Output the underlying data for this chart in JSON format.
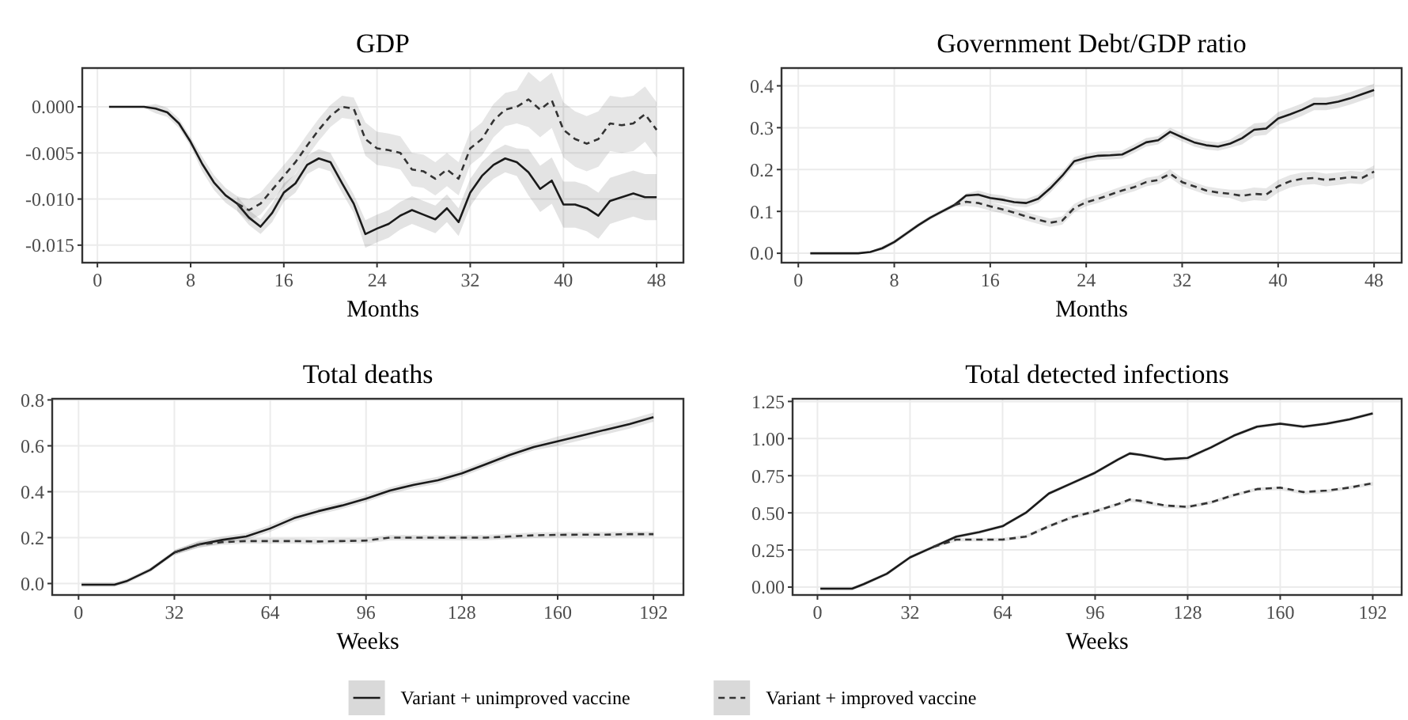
{
  "chart_data": [
    {
      "type": "line",
      "title": "GDP",
      "xlabel": "Months",
      "grid": true,
      "marker": "none",
      "legend": "bottom",
      "x": [
        1,
        2,
        3,
        4,
        5,
        6,
        7,
        8,
        9,
        10,
        11,
        12,
        13,
        14,
        15,
        16,
        17,
        18,
        19,
        20,
        21,
        22,
        23,
        24,
        25,
        26,
        27,
        28,
        29,
        30,
        31,
        32,
        33,
        34,
        35,
        36,
        37,
        38,
        39,
        40,
        41,
        42,
        43,
        44,
        45,
        46,
        47,
        48
      ],
      "xlim": [
        -1.3,
        50.3
      ],
      "xticks": [
        0,
        8,
        16,
        24,
        32,
        40,
        48
      ],
      "ylim": [
        -0.0169,
        0.0042
      ],
      "yticks": [
        {
          "value": 0,
          "label": "0.000"
        },
        {
          "value": -0.005,
          "label": "-0.005"
        },
        {
          "value": -0.01,
          "label": "-0.010"
        },
        {
          "value": -0.015,
          "label": "-0.015"
        }
      ],
      "series": [
        {
          "name": "Variant + unimproved vaccine",
          "color": "#1a1a1a",
          "line_style": "solid",
          "values": [
            0,
            0,
            0,
            0,
            -0.0002,
            -0.0006,
            -0.0018,
            -0.0038,
            -0.0062,
            -0.0082,
            -0.0096,
            -0.0105,
            -0.012,
            -0.013,
            -0.0115,
            -0.0093,
            -0.0083,
            -0.0063,
            -0.0056,
            -0.006,
            -0.0083,
            -0.0105,
            -0.0138,
            -0.0132,
            -0.0127,
            -0.0118,
            -0.0112,
            -0.0117,
            -0.0122,
            -0.011,
            -0.0125,
            -0.0093,
            -0.0075,
            -0.0063,
            -0.0056,
            -0.006,
            -0.0071,
            -0.0089,
            -0.008,
            -0.0106,
            -0.0106,
            -0.011,
            -0.0118,
            -0.0102,
            -0.0098,
            -0.0094,
            -0.0098,
            -0.0098
          ],
          "lower": [
            -0.0001,
            -0.0001,
            -0.0001,
            -0.0001,
            -0.0007,
            -0.0011,
            -0.0023,
            -0.0043,
            -0.007,
            -0.009,
            -0.0104,
            -0.0113,
            -0.0128,
            -0.0138,
            -0.0125,
            -0.0103,
            -0.0093,
            -0.0073,
            -0.0066,
            -0.007,
            -0.0093,
            -0.0115,
            -0.0153,
            -0.0147,
            -0.0142,
            -0.0133,
            -0.0127,
            -0.0132,
            -0.0137,
            -0.0125,
            -0.014,
            -0.0108,
            -0.009,
            -0.0078,
            -0.0071,
            -0.0075,
            -0.0096,
            -0.0114,
            -0.0105,
            -0.0131,
            -0.0131,
            -0.0135,
            -0.0143,
            -0.0127,
            -0.0123,
            -0.0119,
            -0.0123,
            -0.0123
          ],
          "upper": [
            0.0001,
            0.0001,
            0.0001,
            0.0001,
            0.0003,
            -0.0001,
            -0.0013,
            -0.0033,
            -0.0054,
            -0.0074,
            -0.0088,
            -0.0097,
            -0.0112,
            -0.0122,
            -0.0105,
            -0.0083,
            -0.0073,
            -0.0053,
            -0.0046,
            -0.005,
            -0.0073,
            -0.0095,
            -0.0123,
            -0.0117,
            -0.0112,
            -0.0103,
            -0.0097,
            -0.0102,
            -0.0107,
            -0.0095,
            -0.011,
            -0.0078,
            -0.006,
            -0.0048,
            -0.0041,
            -0.0045,
            -0.0046,
            -0.0064,
            -0.0055,
            -0.0081,
            -0.0081,
            -0.0085,
            -0.0093,
            -0.0077,
            -0.0073,
            -0.0069,
            -0.0073,
            -0.0073
          ]
        },
        {
          "name": "Variant + improved vaccine",
          "color": "#333333",
          "line_style": "dashed",
          "values": [
            null,
            null,
            null,
            null,
            null,
            null,
            null,
            null,
            null,
            null,
            null,
            -0.0105,
            -0.0112,
            -0.0105,
            -0.009,
            -0.0075,
            -0.006,
            -0.0042,
            -0.0025,
            -0.001,
            0,
            -0.0002,
            -0.0035,
            -0.0045,
            -0.0047,
            -0.005,
            -0.0068,
            -0.007,
            -0.0078,
            -0.0068,
            -0.0078,
            -0.0045,
            -0.0035,
            -0.0015,
            -0.0003,
            0,
            0.0008,
            -0.0003,
            0.0007,
            -0.0025,
            -0.0035,
            -0.004,
            -0.0035,
            -0.0018,
            -0.002,
            -0.0018,
            -0.0008,
            -0.0025
          ],
          "lower": [
            null,
            null,
            null,
            null,
            null,
            null,
            null,
            null,
            null,
            null,
            null,
            -0.0113,
            -0.0124,
            -0.0117,
            -0.0102,
            -0.0087,
            -0.0072,
            -0.0054,
            -0.0037,
            -0.0022,
            -0.0012,
            -0.0014,
            -0.0053,
            -0.0063,
            -0.0065,
            -0.0068,
            -0.0086,
            -0.0088,
            -0.0096,
            -0.0086,
            -0.0096,
            -0.0063,
            -0.0053,
            -0.0033,
            -0.0021,
            -0.0018,
            -0.0022,
            -0.0033,
            -0.0023,
            -0.0055,
            -0.0065,
            -0.007,
            -0.0065,
            -0.0048,
            -0.005,
            -0.0048,
            -0.0038,
            -0.0055
          ],
          "upper": [
            null,
            null,
            null,
            null,
            null,
            null,
            null,
            null,
            null,
            null,
            null,
            -0.0097,
            -0.01,
            -0.0093,
            -0.0078,
            -0.0063,
            -0.0048,
            -0.003,
            -0.0013,
            0.0002,
            0.0012,
            0.001,
            -0.0017,
            -0.0027,
            -0.0029,
            -0.0032,
            -0.005,
            -0.0052,
            -0.006,
            -0.005,
            -0.006,
            -0.0027,
            -0.0017,
            0.0003,
            0.0015,
            0.0018,
            0.0038,
            0.0027,
            0.0037,
            0.0005,
            -0.0005,
            -0.001,
            -0.0005,
            0.0012,
            0.001,
            0.0012,
            0.0022,
            0.0005
          ]
        }
      ]
    },
    {
      "type": "line",
      "title": "Government Debt/GDP ratio",
      "xlabel": "Months",
      "grid": true,
      "marker": "none",
      "x": [
        1,
        2,
        3,
        4,
        5,
        6,
        7,
        8,
        9,
        10,
        11,
        12,
        13,
        14,
        15,
        16,
        17,
        18,
        19,
        20,
        21,
        22,
        23,
        24,
        25,
        26,
        27,
        28,
        29,
        30,
        31,
        32,
        33,
        34,
        35,
        36,
        37,
        38,
        39,
        40,
        41,
        42,
        43,
        44,
        45,
        46,
        47,
        48
      ],
      "xlim": [
        -1.4,
        50.3
      ],
      "xticks": [
        0,
        8,
        16,
        24,
        32,
        40,
        48
      ],
      "ylim": [
        -0.0225,
        0.4425
      ],
      "yticks": [
        {
          "value": 0,
          "label": "0.0"
        },
        0.1,
        0.2,
        0.3,
        0.4
      ],
      "series": [
        {
          "color": "#1a1a1a",
          "line_style": "solid",
          "values": [
            0,
            0,
            0,
            0,
            0,
            0.003,
            0.012,
            0.027,
            0.047,
            0.067,
            0.085,
            0.1,
            0.115,
            0.138,
            0.14,
            0.132,
            0.128,
            0.122,
            0.12,
            0.13,
            0.155,
            0.185,
            0.22,
            0.228,
            0.233,
            0.234,
            0.236,
            0.25,
            0.265,
            0.27,
            0.29,
            0.277,
            0.265,
            0.258,
            0.255,
            0.262,
            0.275,
            0.295,
            0.298,
            0.322,
            0.332,
            0.343,
            0.357,
            0.357,
            0.362,
            0.37,
            0.38,
            0.39
          ],
          "lower": [
            -0.002,
            -0.002,
            -0.002,
            -0.002,
            -0.002,
            0.001,
            0.007,
            0.022,
            0.042,
            0.062,
            0.08,
            0.095,
            0.11,
            0.133,
            0.13,
            0.122,
            0.118,
            0.112,
            0.11,
            0.12,
            0.145,
            0.175,
            0.21,
            0.218,
            0.223,
            0.224,
            0.226,
            0.24,
            0.255,
            0.26,
            0.28,
            0.267,
            0.255,
            0.248,
            0.245,
            0.252,
            0.26,
            0.28,
            0.283,
            0.307,
            0.317,
            0.328,
            0.342,
            0.342,
            0.347,
            0.355,
            0.365,
            0.375
          ],
          "upper": [
            0.002,
            0.002,
            0.002,
            0.002,
            0.002,
            0.005,
            0.017,
            0.032,
            0.052,
            0.072,
            0.09,
            0.105,
            0.12,
            0.143,
            0.15,
            0.142,
            0.138,
            0.132,
            0.13,
            0.14,
            0.165,
            0.195,
            0.23,
            0.238,
            0.243,
            0.244,
            0.246,
            0.26,
            0.275,
            0.28,
            0.3,
            0.287,
            0.275,
            0.268,
            0.265,
            0.272,
            0.29,
            0.31,
            0.313,
            0.337,
            0.347,
            0.358,
            0.372,
            0.372,
            0.377,
            0.385,
            0.395,
            0.405
          ]
        },
        {
          "color": "#333333",
          "line_style": "dashed",
          "values": [
            null,
            null,
            null,
            null,
            null,
            null,
            null,
            null,
            null,
            null,
            null,
            null,
            0.115,
            0.123,
            0.12,
            0.112,
            0.105,
            0.097,
            0.088,
            0.08,
            0.073,
            0.078,
            0.108,
            0.122,
            0.13,
            0.14,
            0.15,
            0.158,
            0.17,
            0.175,
            0.19,
            0.17,
            0.16,
            0.15,
            0.145,
            0.142,
            0.137,
            0.142,
            0.14,
            0.16,
            0.172,
            0.178,
            0.18,
            0.175,
            0.178,
            0.182,
            0.18,
            0.195
          ],
          "lower": [
            null,
            null,
            null,
            null,
            null,
            null,
            null,
            null,
            null,
            null,
            null,
            null,
            0.11,
            0.113,
            0.11,
            0.102,
            0.095,
            0.087,
            0.078,
            0.07,
            0.063,
            0.068,
            0.098,
            0.112,
            0.12,
            0.13,
            0.14,
            0.148,
            0.16,
            0.165,
            0.18,
            0.16,
            0.15,
            0.14,
            0.135,
            0.132,
            0.122,
            0.127,
            0.125,
            0.145,
            0.157,
            0.163,
            0.165,
            0.16,
            0.163,
            0.167,
            0.165,
            0.18
          ],
          "upper": [
            null,
            null,
            null,
            null,
            null,
            null,
            null,
            null,
            null,
            null,
            null,
            null,
            0.12,
            0.133,
            0.13,
            0.122,
            0.115,
            0.107,
            0.098,
            0.09,
            0.083,
            0.088,
            0.118,
            0.132,
            0.14,
            0.15,
            0.16,
            0.168,
            0.18,
            0.185,
            0.2,
            0.18,
            0.17,
            0.16,
            0.155,
            0.152,
            0.152,
            0.157,
            0.155,
            0.175,
            0.187,
            0.193,
            0.195,
            0.19,
            0.193,
            0.197,
            0.195,
            0.21
          ]
        }
      ]
    },
    {
      "type": "line",
      "title": "Total deaths",
      "xlabel": "Weeks",
      "grid": true,
      "marker": "none",
      "x": [
        1,
        8,
        12,
        16,
        24,
        32,
        40,
        48,
        56,
        64,
        72,
        80,
        88,
        96,
        104,
        112,
        120,
        128,
        136,
        144,
        152,
        160,
        168,
        176,
        184,
        192
      ],
      "xlim": [
        -8.8,
        202
      ],
      "xticks": [
        0,
        32,
        64,
        96,
        128,
        160,
        192
      ],
      "ylim": [
        -0.05,
        0.805
      ],
      "yticks": [
        {
          "value": 0,
          "label": "0.0"
        },
        0.2,
        0.4,
        0.6,
        0.8
      ],
      "series": [
        {
          "color": "#1a1a1a",
          "line_style": "solid",
          "values": [
            -0.005,
            -0.005,
            -0.005,
            0.01,
            0.06,
            0.135,
            0.17,
            0.19,
            0.205,
            0.24,
            0.285,
            0.315,
            0.34,
            0.37,
            0.405,
            0.43,
            0.45,
            0.48,
            0.52,
            0.56,
            0.595,
            0.62,
            0.645,
            0.67,
            0.695,
            0.725
          ],
          "lower": [
            -0.015,
            -0.015,
            -0.015,
            0,
            0.05,
            0.125,
            0.155,
            0.175,
            0.19,
            0.225,
            0.27,
            0.3,
            0.325,
            0.355,
            0.39,
            0.415,
            0.435,
            0.465,
            0.505,
            0.545,
            0.58,
            0.6,
            0.625,
            0.65,
            0.675,
            0.705
          ],
          "upper": [
            0.005,
            0.005,
            0.005,
            0.02,
            0.07,
            0.145,
            0.185,
            0.205,
            0.22,
            0.255,
            0.3,
            0.33,
            0.355,
            0.385,
            0.42,
            0.445,
            0.465,
            0.495,
            0.535,
            0.575,
            0.61,
            0.64,
            0.665,
            0.69,
            0.715,
            0.745
          ]
        },
        {
          "color": "#333333",
          "line_style": "dashed",
          "values": [
            null,
            null,
            null,
            null,
            null,
            0.135,
            0.17,
            0.18,
            0.185,
            0.185,
            0.185,
            0.183,
            0.185,
            0.187,
            0.2,
            0.2,
            0.2,
            0.2,
            0.2,
            0.205,
            0.21,
            0.212,
            0.213,
            0.213,
            0.215,
            0.215
          ],
          "lower": [
            null,
            null,
            null,
            null,
            null,
            0.123,
            0.158,
            0.168,
            0.173,
            0.173,
            0.173,
            0.171,
            0.173,
            0.175,
            0.188,
            0.188,
            0.188,
            0.188,
            0.188,
            0.193,
            0.198,
            0.2,
            0.201,
            0.201,
            0.203,
            0.203
          ],
          "upper": [
            null,
            null,
            null,
            null,
            null,
            0.147,
            0.182,
            0.192,
            0.197,
            0.197,
            0.197,
            0.195,
            0.197,
            0.199,
            0.212,
            0.212,
            0.212,
            0.212,
            0.212,
            0.217,
            0.222,
            0.224,
            0.225,
            0.225,
            0.227,
            0.227
          ]
        }
      ]
    },
    {
      "type": "line",
      "title": "Total detected infections",
      "xlabel": "Weeks",
      "grid": true,
      "marker": "none",
      "x": [
        1,
        8,
        12,
        16,
        24,
        32,
        40,
        48,
        56,
        64,
        72,
        80,
        88,
        96,
        104,
        108,
        112,
        120,
        128,
        136,
        144,
        152,
        160,
        168,
        176,
        184,
        192
      ],
      "xlim": [
        -8.6,
        202
      ],
      "xticks": [
        0,
        32,
        64,
        96,
        128,
        160,
        192
      ],
      "ylim": [
        -0.053,
        1.268
      ],
      "yticks": [
        {
          "value": 0,
          "label": "0.00"
        },
        {
          "value": 0.25,
          "label": "0.25"
        },
        {
          "value": 0.5,
          "label": "0.50"
        },
        {
          "value": 0.75,
          "label": "0.75"
        },
        {
          "value": 1,
          "label": "1.00"
        },
        {
          "value": 1.25,
          "label": "1.25"
        }
      ],
      "series": [
        {
          "color": "#1a1a1a",
          "line_style": "solid",
          "values": [
            -0.01,
            -0.01,
            -0.01,
            0.02,
            0.09,
            0.2,
            0.27,
            0.34,
            0.37,
            0.41,
            0.5,
            0.63,
            0.7,
            0.77,
            0.86,
            0.9,
            0.89,
            0.86,
            0.87,
            0.94,
            1.02,
            1.08,
            1.1,
            1.08,
            1.1,
            1.13,
            1.17
          ],
          "lower": [
            -0.022,
            -0.022,
            -0.022,
            0.008,
            0.078,
            0.188,
            0.258,
            0.328,
            0.358,
            0.398,
            0.488,
            0.618,
            0.688,
            0.758,
            0.848,
            0.888,
            0.878,
            0.848,
            0.853,
            0.928,
            1.008,
            1.068,
            1.088,
            1.068,
            1.088,
            1.118,
            1.158
          ],
          "upper": [
            0.002,
            0.002,
            0.002,
            0.032,
            0.102,
            0.212,
            0.282,
            0.352,
            0.382,
            0.422,
            0.512,
            0.642,
            0.712,
            0.782,
            0.872,
            0.912,
            0.902,
            0.872,
            0.877,
            0.952,
            1.032,
            1.092,
            1.112,
            1.092,
            1.112,
            1.142,
            1.182
          ]
        },
        {
          "color": "#333333",
          "line_style": "dashed",
          "values": [
            null,
            null,
            null,
            null,
            null,
            null,
            0.27,
            0.32,
            0.32,
            0.32,
            0.34,
            0.41,
            0.47,
            0.51,
            0.56,
            0.59,
            0.58,
            0.55,
            0.54,
            0.57,
            0.62,
            0.66,
            0.67,
            0.64,
            0.65,
            0.67,
            0.7
          ],
          "lower": [
            null,
            null,
            null,
            null,
            null,
            null,
            0.258,
            0.308,
            0.308,
            0.308,
            0.328,
            0.398,
            0.458,
            0.498,
            0.548,
            0.573,
            0.563,
            0.533,
            0.528,
            0.558,
            0.608,
            0.648,
            0.653,
            0.623,
            0.633,
            0.658,
            0.683
          ],
          "upper": [
            null,
            null,
            null,
            null,
            null,
            null,
            0.282,
            0.332,
            0.332,
            0.332,
            0.352,
            0.422,
            0.482,
            0.522,
            0.572,
            0.597,
            0.587,
            0.557,
            0.552,
            0.582,
            0.632,
            0.672,
            0.677,
            0.647,
            0.657,
            0.682,
            0.707
          ]
        }
      ]
    }
  ]
}
